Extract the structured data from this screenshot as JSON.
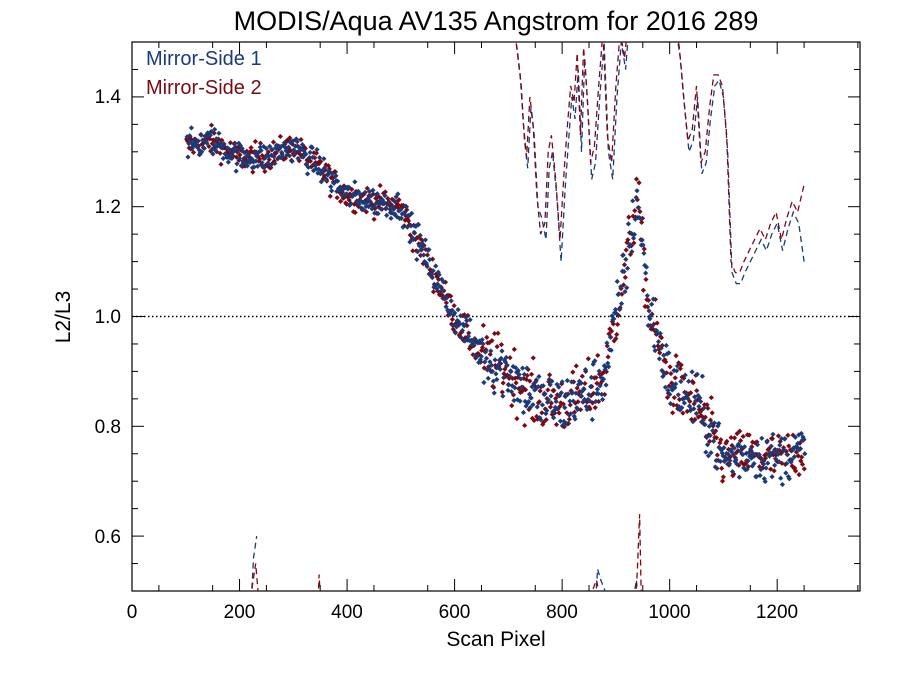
{
  "chart_data": {
    "type": "scatter",
    "title": "MODIS/Aqua AV135 Angstrom for 2016 289",
    "xlabel": "Scan Pixel",
    "ylabel": "L2/L3",
    "xlim": [
      0,
      1354
    ],
    "ylim": [
      0.5,
      1.5
    ],
    "x_ticks": [
      0,
      200,
      400,
      600,
      800,
      1000,
      1200
    ],
    "y_ticks": [
      0.6,
      0.8,
      1.0,
      1.2,
      1.4
    ],
    "x_ticks_labels": [
      "0",
      "200",
      "400",
      "600",
      "800",
      "1000",
      "1200"
    ],
    "y_ticks_labels": [
      "0.6",
      "0.8",
      "1.0",
      "1.2",
      "1.4"
    ],
    "reference_line": 1.0,
    "legend_position": "top-left",
    "series": [
      {
        "name": "Mirror-Side 1",
        "color": "#1a3a7a",
        "marker": "diamond",
        "trend": [
          [
            100,
            1.31
          ],
          [
            150,
            1.32
          ],
          [
            200,
            1.29
          ],
          [
            250,
            1.29
          ],
          [
            300,
            1.31
          ],
          [
            350,
            1.27
          ],
          [
            400,
            1.22
          ],
          [
            450,
            1.21
          ],
          [
            500,
            1.2
          ],
          [
            550,
            1.1
          ],
          [
            600,
            1.0
          ],
          [
            650,
            0.93
          ],
          [
            700,
            0.9
          ],
          [
            750,
            0.85
          ],
          [
            800,
            0.84
          ],
          [
            850,
            0.86
          ],
          [
            880,
            0.9
          ],
          [
            920,
            1.1
          ],
          [
            940,
            1.22
          ],
          [
            960,
            1.02
          ],
          [
            1000,
            0.88
          ],
          [
            1050,
            0.84
          ],
          [
            1100,
            0.74
          ],
          [
            1150,
            0.75
          ],
          [
            1200,
            0.74
          ],
          [
            1250,
            0.76
          ]
        ]
      },
      {
        "name": "Mirror-Side 2",
        "color": "#7a0a14",
        "marker": "diamond",
        "trend": [
          [
            100,
            1.31
          ],
          [
            150,
            1.32
          ],
          [
            200,
            1.29
          ],
          [
            250,
            1.29
          ],
          [
            300,
            1.31
          ],
          [
            350,
            1.27
          ],
          [
            400,
            1.22
          ],
          [
            450,
            1.21
          ],
          [
            500,
            1.2
          ],
          [
            550,
            1.1
          ],
          [
            600,
            1.0
          ],
          [
            650,
            0.93
          ],
          [
            700,
            0.9
          ],
          [
            750,
            0.85
          ],
          [
            800,
            0.84
          ],
          [
            850,
            0.86
          ],
          [
            880,
            0.9
          ],
          [
            920,
            1.1
          ],
          [
            940,
            1.22
          ],
          [
            960,
            1.02
          ],
          [
            1000,
            0.88
          ],
          [
            1050,
            0.84
          ],
          [
            1100,
            0.74
          ],
          [
            1150,
            0.75
          ],
          [
            1200,
            0.74
          ],
          [
            1250,
            0.76
          ]
        ]
      }
    ],
    "dashed_lines": [
      {
        "series": "Mirror-Side 1",
        "color": "#1a3a7a",
        "segments": [
          [
            [
              220,
              0.45
            ],
            [
              226,
              0.56
            ],
            [
              232,
              0.6
            ]
          ],
          [
            [
              705,
              1.55
            ],
            [
              712,
              1.52
            ],
            [
              718,
              1.47
            ],
            [
              724,
              1.42
            ],
            [
              730,
              1.32
            ],
            [
              736,
              1.27
            ],
            [
              742,
              1.38
            ],
            [
              748,
              1.33
            ],
            [
              755,
              1.2
            ],
            [
              762,
              1.18
            ],
            [
              770,
              1.14
            ],
            [
              776,
              1.27
            ],
            [
              782,
              1.3
            ],
            [
              790,
              1.22
            ],
            [
              798,
              1.1
            ],
            [
              806,
              1.24
            ],
            [
              812,
              1.32
            ],
            [
              818,
              1.4
            ],
            [
              824,
              1.36
            ],
            [
              830,
              1.45
            ],
            [
              836,
              1.3
            ],
            [
              842,
              1.47
            ],
            [
              848,
              1.38
            ],
            [
              855,
              1.25
            ],
            [
              862,
              1.28
            ],
            [
              870,
              1.4
            ],
            [
              878,
              1.5
            ],
            [
              886,
              1.3
            ],
            [
              894,
              1.25
            ],
            [
              902,
              1.4
            ],
            [
              910,
              1.5
            ],
            [
              918,
              1.45
            ],
            [
              926,
              1.55
            ]
          ],
          [
            [
              1005,
              1.55
            ],
            [
              1012,
              1.52
            ],
            [
              1020,
              1.47
            ],
            [
              1028,
              1.38
            ],
            [
              1036,
              1.3
            ],
            [
              1044,
              1.32
            ],
            [
              1052,
              1.4
            ],
            [
              1060,
              1.26
            ],
            [
              1068,
              1.28
            ],
            [
              1076,
              1.36
            ],
            [
              1084,
              1.42
            ],
            [
              1092,
              1.43
            ],
            [
              1100,
              1.4
            ],
            [
              1108,
              1.3
            ],
            [
              1116,
              1.08
            ],
            [
              1124,
              1.06
            ],
            [
              1132,
              1.06
            ],
            [
              1140,
              1.08
            ],
            [
              1150,
              1.1
            ],
            [
              1160,
              1.12
            ],
            [
              1170,
              1.14
            ],
            [
              1180,
              1.12
            ],
            [
              1190,
              1.15
            ],
            [
              1200,
              1.17
            ],
            [
              1210,
              1.12
            ],
            [
              1220,
              1.16
            ],
            [
              1230,
              1.19
            ],
            [
              1240,
              1.17
            ],
            [
              1250,
              1.1
            ]
          ],
          [
            [
              860,
              0.45
            ],
            [
              866,
              0.54
            ],
            [
              872,
              0.52
            ],
            [
              880,
              0.5
            ],
            [
              888,
              0.45
            ]
          ],
          [
            [
              925,
              0.45
            ],
            [
              932,
              0.48
            ],
            [
              938,
              0.52
            ],
            [
              944,
              0.45
            ]
          ]
        ]
      },
      {
        "series": "Mirror-Side 2",
        "color": "#7a0a14",
        "segments": [
          [
            [
              220,
              0.45
            ],
            [
              224,
              0.51
            ],
            [
              230,
              0.55
            ],
            [
              236,
              0.48
            ]
          ],
          [
            [
              345,
              0.45
            ],
            [
              348,
              0.53
            ],
            [
              352,
              0.45
            ]
          ],
          [
            [
              700,
              1.55
            ],
            [
              708,
              1.53
            ],
            [
              716,
              1.49
            ],
            [
              722,
              1.44
            ],
            [
              728,
              1.35
            ],
            [
              734,
              1.29
            ],
            [
              740,
              1.4
            ],
            [
              746,
              1.35
            ],
            [
              753,
              1.22
            ],
            [
              760,
              1.15
            ],
            [
              768,
              1.17
            ],
            [
              774,
              1.3
            ],
            [
              780,
              1.33
            ],
            [
              788,
              1.25
            ],
            [
              796,
              1.14
            ],
            [
              804,
              1.27
            ],
            [
              810,
              1.35
            ],
            [
              816,
              1.42
            ],
            [
              822,
              1.39
            ],
            [
              828,
              1.48
            ],
            [
              834,
              1.33
            ],
            [
              840,
              1.49
            ],
            [
              846,
              1.41
            ],
            [
              853,
              1.28
            ],
            [
              860,
              1.31
            ],
            [
              868,
              1.42
            ],
            [
              876,
              1.52
            ],
            [
              884,
              1.33
            ],
            [
              892,
              1.28
            ],
            [
              900,
              1.42
            ],
            [
              908,
              1.52
            ],
            [
              916,
              1.47
            ],
            [
              924,
              1.55
            ]
          ],
          [
            [
              1002,
              1.55
            ],
            [
              1010,
              1.54
            ],
            [
              1018,
              1.49
            ],
            [
              1026,
              1.4
            ],
            [
              1034,
              1.32
            ],
            [
              1042,
              1.34
            ],
            [
              1050,
              1.42
            ],
            [
              1058,
              1.28
            ],
            [
              1066,
              1.3
            ],
            [
              1074,
              1.38
            ],
            [
              1082,
              1.44
            ],
            [
              1090,
              1.44
            ],
            [
              1098,
              1.42
            ],
            [
              1106,
              1.33
            ],
            [
              1114,
              1.1
            ],
            [
              1122,
              1.08
            ],
            [
              1130,
              1.08
            ],
            [
              1138,
              1.1
            ],
            [
              1148,
              1.12
            ],
            [
              1158,
              1.14
            ],
            [
              1168,
              1.16
            ],
            [
              1178,
              1.14
            ],
            [
              1188,
              1.17
            ],
            [
              1198,
              1.19
            ],
            [
              1208,
              1.14
            ],
            [
              1218,
              1.18
            ],
            [
              1228,
              1.21
            ],
            [
              1238,
              1.19
            ],
            [
              1250,
              1.24
            ]
          ],
          [
            [
              935,
              0.45
            ],
            [
              940,
              0.54
            ],
            [
              944,
              0.64
            ],
            [
              948,
              0.45
            ]
          ],
          [
            [
              850,
              0.45
            ],
            [
              856,
              0.5
            ],
            [
              864,
              0.52
            ],
            [
              872,
              0.48
            ],
            [
              880,
              0.45
            ]
          ]
        ]
      }
    ]
  },
  "legend": {
    "items": [
      {
        "label": "Mirror-Side 1",
        "color": "#1a3a7a"
      },
      {
        "label": "Mirror-Side 2",
        "color": "#7a0a14"
      }
    ]
  }
}
